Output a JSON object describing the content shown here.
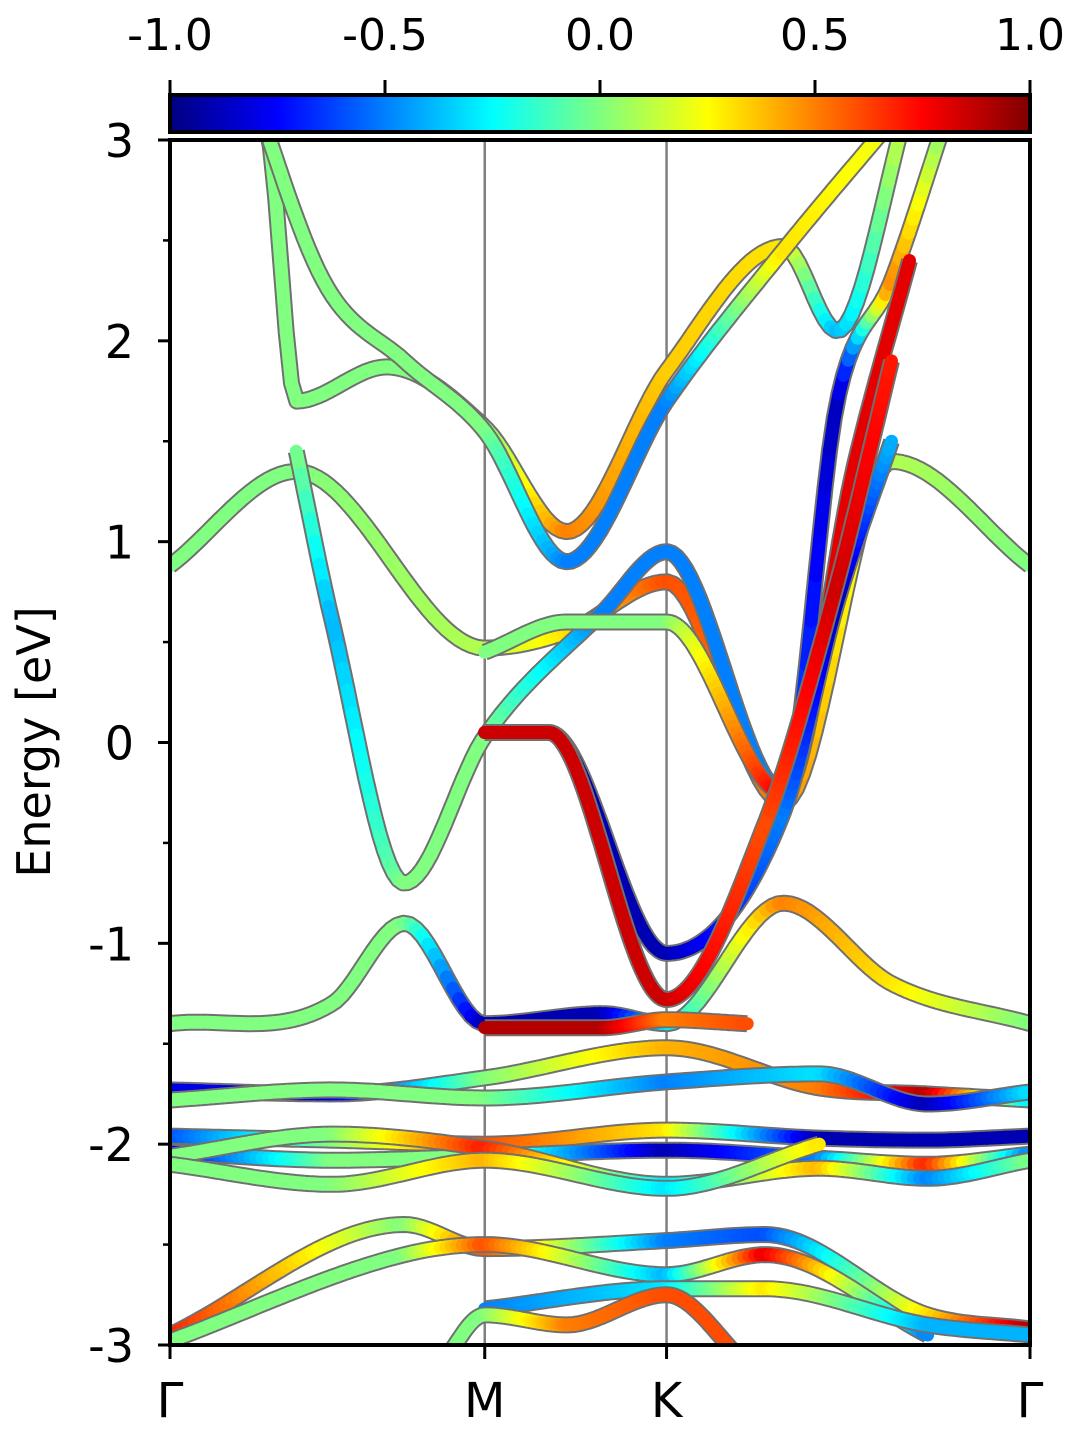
{
  "chart_data": {
    "type": "line",
    "subtype": "band-structure",
    "ylabel": "Energy [eV]",
    "ylim": [
      -3,
      3
    ],
    "yticks": [
      "3",
      "2",
      "1",
      "0",
      "-1",
      "-2",
      "-3"
    ],
    "ymajor": [
      3,
      2,
      1,
      0,
      -1,
      -2,
      -3
    ],
    "yminor": [
      2.5,
      1.5,
      0.5,
      -0.5,
      -1.5,
      -2.5
    ],
    "x": [
      0,
      1.745,
      2.753,
      4.768
    ],
    "kpoints": [
      {
        "label": "Γ",
        "pos": 0
      },
      {
        "label": "M",
        "pos": 1.745
      },
      {
        "label": "K",
        "pos": 2.753
      },
      {
        "label": "Γ",
        "pos": 4.768
      }
    ],
    "colorbar": {
      "range": [
        -1.0,
        1.0
      ],
      "ticks": [
        "-1.0",
        "-0.5",
        "0.0",
        "0.5",
        "1.0"
      ],
      "tick_values": [
        -1.0,
        -0.5,
        0.0,
        0.5,
        1.0
      ],
      "colormap": "jet",
      "colors": [
        "#00007f",
        "#0000ff",
        "#007fff",
        "#00ffff",
        "#7fff7f",
        "#ffff00",
        "#ff7f00",
        "#ff0000",
        "#7f0000"
      ],
      "position": "top"
    },
    "series": [
      {
        "x": [
          0,
          0.7,
          1.745,
          2.2,
          2.753,
          3.4,
          4.0,
          4.768
        ],
        "values": [
          0.88,
          1.35,
          0.47,
          0.55,
          0.8,
          -0.3,
          1.4,
          0.88
        ],
        "colors": [
          0.0,
          0.0,
          0.1,
          0.3,
          0.6,
          0.5,
          0.1,
          0.0
        ]
      },
      {
        "x": [
          0,
          0.55,
          0.7,
          1.2,
          1.745,
          2.2,
          2.753,
          3.4,
          3.7,
          4.1
        ],
        "values": [
          3.4,
          3.0,
          1.7,
          1.87,
          1.57,
          1.05,
          1.85,
          2.47,
          2.05,
          3.2
        ],
        "colors": [
          0.0,
          0.0,
          0.0,
          0.0,
          0.0,
          0.5,
          0.35,
          0.3,
          -0.4,
          0.2
        ]
      },
      {
        "x": [
          0.4,
          0.85,
          1.3,
          1.745,
          2.2,
          2.753,
          3.4,
          4.1
        ],
        "values": [
          3.4,
          2.3,
          1.9,
          1.55,
          0.9,
          1.7,
          2.45,
          3.2
        ],
        "colors": [
          0.0,
          0.0,
          0.0,
          0.0,
          -0.5,
          -0.5,
          0.3,
          0.2
        ]
      },
      {
        "x": [
          0.7,
          0.9,
          1.3,
          1.745,
          2.4,
          2.753,
          3.4,
          3.7,
          4.0,
          4.3
        ],
        "values": [
          1.45,
          0.6,
          -0.7,
          0.03,
          0.65,
          0.95,
          -0.25,
          1.7,
          2.3,
          3.1
        ],
        "colors": [
          0.0,
          -0.4,
          0.0,
          0.0,
          -0.5,
          -0.5,
          -0.5,
          -0.9,
          0.5,
          0.0
        ]
      },
      {
        "x": [
          1.745,
          2.2,
          2.753,
          3.4,
          3.8,
          4.1
        ],
        "values": [
          0.45,
          0.6,
          0.6,
          -0.25,
          1.4,
          2.4
        ],
        "colors": [
          0.0,
          0.0,
          0.0,
          0.8,
          0.8,
          0.8
        ]
      },
      {
        "x": [
          1.745,
          2.1,
          2.753,
          3.4,
          3.7,
          4.0
        ],
        "values": [
          0.05,
          0.05,
          -1.05,
          -0.35,
          0.7,
          1.5
        ],
        "colors": [
          -0.9,
          -0.9,
          -0.9,
          -0.5,
          -0.9,
          -0.4
        ]
      },
      {
        "x": [
          1.745,
          2.1,
          2.753,
          3.3,
          3.7,
          4.0
        ],
        "values": [
          0.05,
          0.05,
          -1.28,
          -0.4,
          0.8,
          1.9
        ],
        "colors": [
          0.85,
          0.85,
          0.85,
          0.6,
          0.85,
          0.7
        ]
      },
      {
        "x": [
          0,
          0.9,
          1.3,
          1.745,
          2.4,
          2.753,
          3.4,
          4.0,
          4.768
        ],
        "values": [
          -1.4,
          -1.3,
          -0.9,
          -1.4,
          -1.35,
          -1.4,
          -0.8,
          -1.2,
          -1.4
        ],
        "colors": [
          0.0,
          0.0,
          0.0,
          -0.9,
          -0.9,
          -0.3,
          0.5,
          0.3,
          0.0
        ]
      },
      {
        "x": [
          1.745,
          2.4,
          2.753,
          3.2
        ],
        "values": [
          -1.42,
          -1.42,
          -1.38,
          -1.4
        ],
        "colors": [
          0.9,
          0.9,
          0.5,
          0.6
        ]
      },
      {
        "x": [
          0,
          0.9,
          1.745,
          2.753,
          3.6,
          4.2,
          4.768
        ],
        "values": [
          -1.73,
          -1.75,
          -1.67,
          -1.52,
          -1.72,
          -1.75,
          -1.78
        ],
        "colors": [
          -0.8,
          -0.8,
          0.0,
          0.4,
          0.5,
          0.9,
          -0.3
        ]
      },
      {
        "x": [
          0,
          0.9,
          1.745,
          2.753,
          3.6,
          4.2,
          4.768
        ],
        "values": [
          -1.78,
          -1.73,
          -1.77,
          -1.69,
          -1.65,
          -1.8,
          -1.74
        ],
        "colors": [
          0.0,
          0.0,
          0.0,
          -0.5,
          -0.3,
          -0.9,
          -0.3
        ]
      },
      {
        "x": [
          0,
          0.9,
          1.745,
          2.753,
          3.6,
          4.2,
          4.768
        ],
        "values": [
          -1.96,
          -1.98,
          -2.0,
          -1.93,
          -1.97,
          -1.98,
          -1.96
        ],
        "colors": [
          -0.6,
          0.0,
          0.6,
          0.3,
          -0.9,
          -0.9,
          -0.9
        ]
      },
      {
        "x": [
          0,
          0.9,
          1.745,
          2.753,
          3.6,
          4.2,
          4.768
        ],
        "values": [
          -2.04,
          -2.08,
          -2.06,
          -2.03,
          -2.07,
          -2.1,
          -2.05
        ],
        "colors": [
          -0.8,
          0.0,
          0.0,
          -0.9,
          -0.5,
          0.7,
          -0.5
        ]
      },
      {
        "x": [
          0,
          0.9,
          1.745,
          2.753,
          3.6,
          4.2,
          4.768
        ],
        "values": [
          -2.06,
          -1.95,
          -2.02,
          -2.2,
          -2.12,
          -2.17,
          -2.08
        ],
        "colors": [
          0.0,
          0.0,
          0.7,
          -0.3,
          0.4,
          -0.5,
          0.0
        ]
      },
      {
        "x": [
          0,
          0.9,
          1.745,
          2.753,
          3.6
        ],
        "values": [
          -2.1,
          -2.2,
          -2.08,
          -2.22,
          -2.0
        ],
        "colors": [
          0.0,
          0.0,
          0.4,
          -0.3,
          0.3
        ]
      },
      {
        "x": [
          0,
          1.3,
          1.745,
          2.753,
          3.3,
          4.2,
          4.768
        ],
        "values": [
          -2.95,
          -2.4,
          -2.52,
          -2.48,
          -2.45,
          -2.85,
          -2.92
        ],
        "colors": [
          0.7,
          0.0,
          0.6,
          -0.5,
          -0.6,
          0.3,
          0.9
        ]
      },
      {
        "x": [
          0,
          1.3,
          1.745,
          2.753,
          3.3,
          4.2
        ],
        "values": [
          -2.98,
          -2.55,
          -2.5,
          -2.65,
          -2.55,
          -2.95
        ],
        "colors": [
          0.0,
          0.0,
          0.6,
          -0.4,
          0.8,
          -0.5
        ]
      },
      {
        "x": [
          1.745,
          2.753,
          3.3,
          4.2,
          4.768
        ],
        "values": [
          -2.82,
          -2.72,
          -2.72,
          -2.9,
          -2.95
        ],
        "colors": [
          -0.5,
          -0.3,
          0.3,
          -0.4,
          -0.4
        ]
      },
      {
        "x": [
          1.5,
          1.745,
          2.2,
          2.753,
          3.2
        ],
        "values": [
          -3.1,
          -2.85,
          -2.9,
          -2.75,
          -3.1
        ],
        "colors": [
          0.0,
          0.0,
          0.5,
          0.6,
          0.6
        ]
      }
    ]
  }
}
